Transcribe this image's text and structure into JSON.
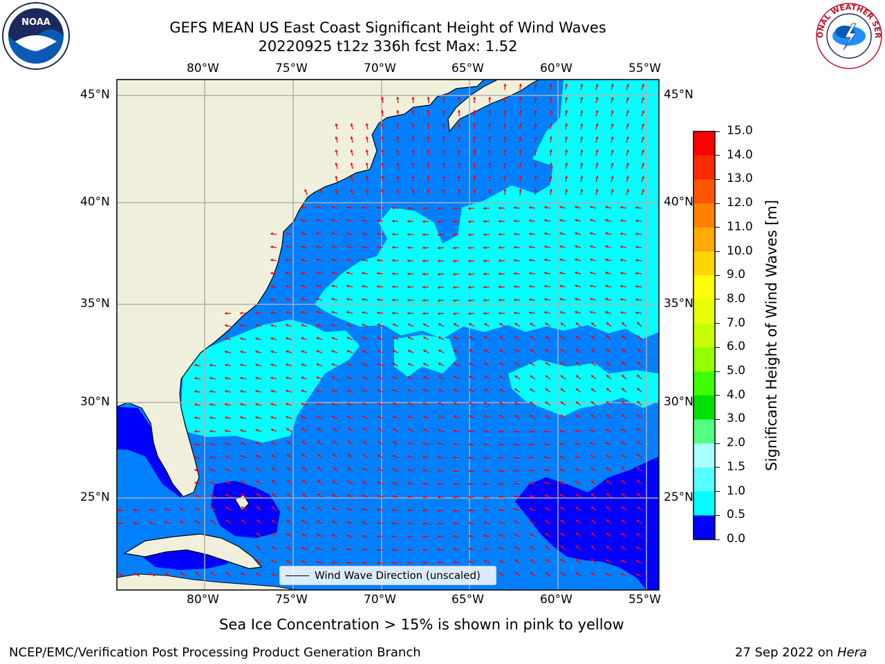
{
  "title": {
    "line1": "GEFS MEAN US East Coast Significant Height of Wind Waves",
    "line2": "20220925 t12z 336h fcst   Max: 1.52"
  },
  "map": {
    "lon_ticks": [
      "80°W",
      "75°W",
      "70°W",
      "65°W",
      "60°W",
      "55°W"
    ],
    "lat_ticks": [
      "45°N",
      "40°N",
      "35°N",
      "30°N",
      "25°N"
    ],
    "colors": {
      "land": "#efefdc",
      "ocean_low": "#0000ff",
      "ocean_mid": "#0080ff",
      "ocean_high": "#00ffff",
      "arrow": "#ff0000",
      "grid": "#b0b0b0"
    }
  },
  "legend": {
    "label": "Wind Wave Direction (unscaled)"
  },
  "colorbar": {
    "label": "Significant Height of Wind Waves [m]",
    "ticks": [
      "15.0",
      "14.0",
      "13.0",
      "12.0",
      "11.0",
      "10.0",
      "9.0",
      "8.0",
      "7.0",
      "6.0",
      "5.0",
      "4.0",
      "3.0",
      "2.0",
      "1.5",
      "1.0",
      "0.5",
      "0.0"
    ],
    "colors": [
      "#ff0000",
      "#ff2a00",
      "#ff5500",
      "#ff8000",
      "#ffaa00",
      "#ffd500",
      "#ffff00",
      "#eaff00",
      "#c8ff00",
      "#90ff00",
      "#40ff00",
      "#00e000",
      "#55ff80",
      "#aaffff",
      "#55ffff",
      "#00ffff",
      "#0080ff",
      "#0000ff"
    ]
  },
  "caption": "Sea Ice Concentration > 15% is shown in pink to yellow",
  "footer": {
    "left": "NCEP/EMC/Verification Post Processing Product Generation Branch",
    "date": "27 Sep 2022 on ",
    "machine": "Hera"
  },
  "logos": {
    "left": "NOAA",
    "right": "NATIONAL WEATHER SERVICE"
  }
}
